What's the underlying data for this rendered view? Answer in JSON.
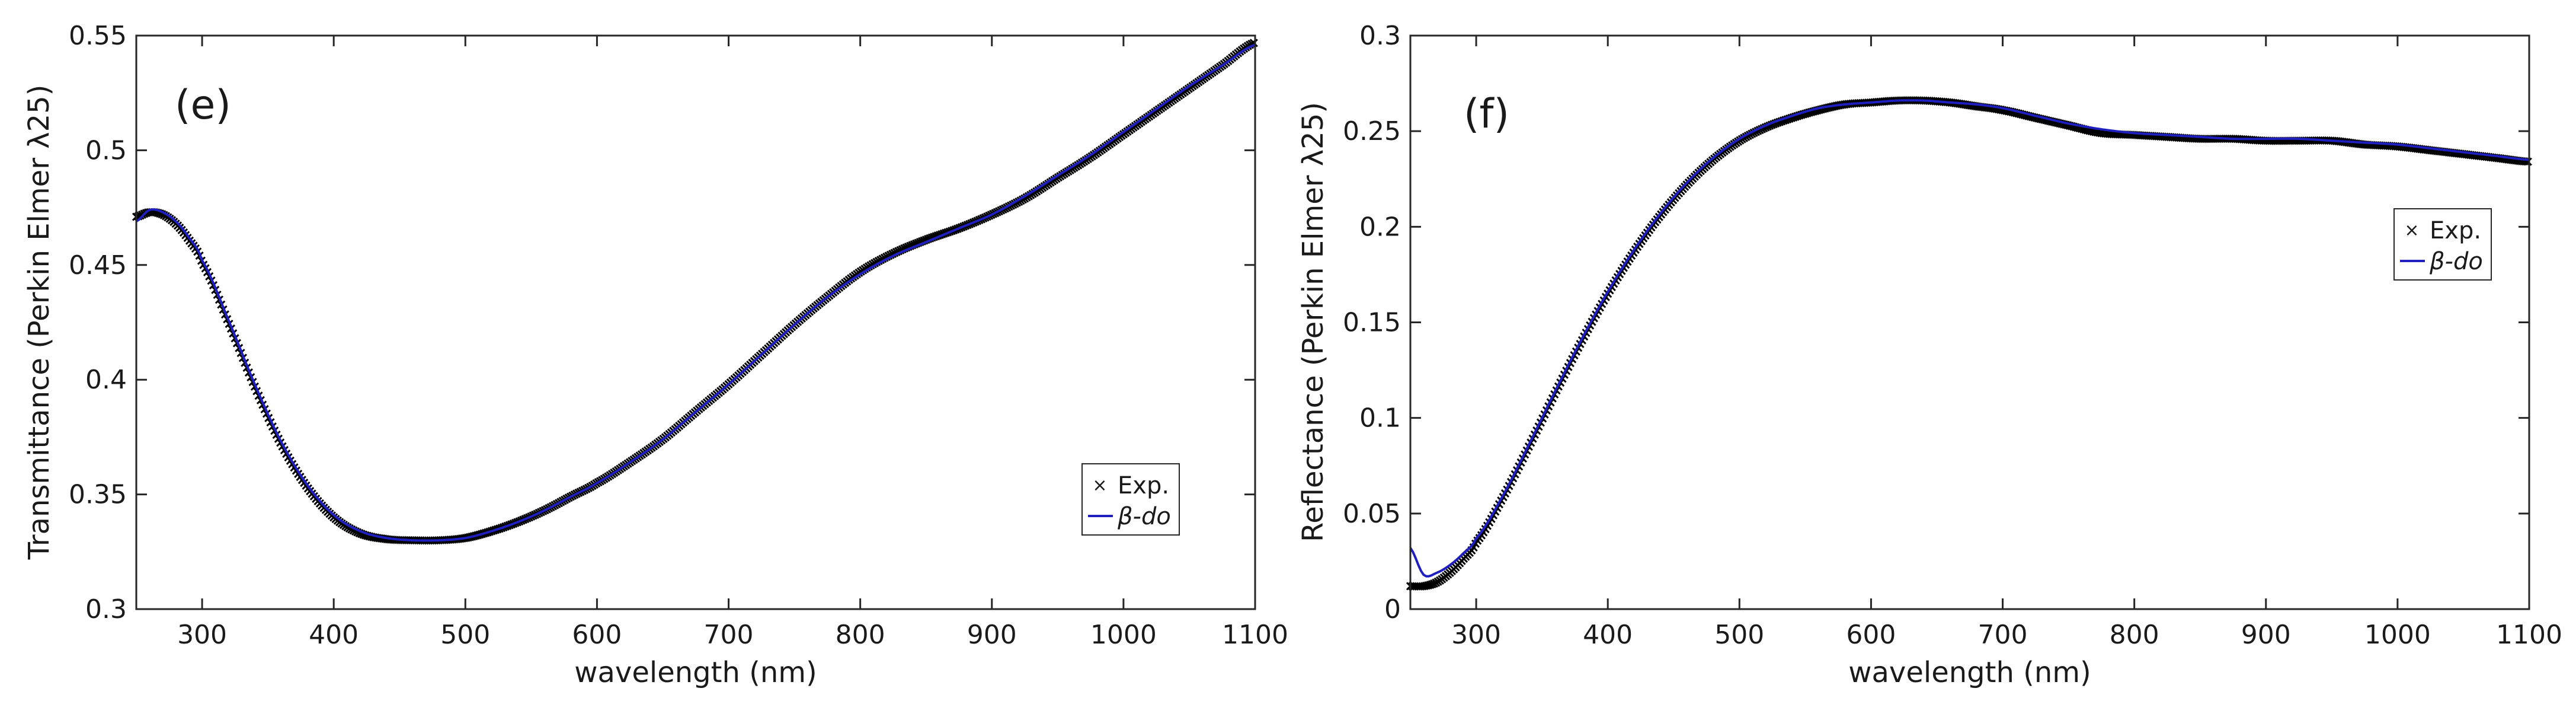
{
  "colors": {
    "experimental": "#000000",
    "model": "#1f1fbf",
    "axis": "#262626",
    "background": "#ffffff"
  },
  "chart_data": [
    {
      "type": "line",
      "panel_label": "(e)",
      "xlabel": "wavelength (nm)",
      "ylabel": "Transmittance (Perkin Elmer λ25)",
      "xlim": [
        250,
        1100
      ],
      "ylim": [
        0.3,
        0.55
      ],
      "x_ticks": [
        300,
        400,
        500,
        600,
        700,
        800,
        900,
        1000,
        1100
      ],
      "x_tick_labels": [
        "300",
        "400",
        "500",
        "600",
        "700",
        "800",
        "900",
        "1000",
        "1100"
      ],
      "y_ticks": [
        0.3,
        0.35,
        0.4,
        0.45,
        0.5,
        0.55
      ],
      "y_tick_labels": [
        "0.3",
        "0.35",
        "0.4",
        "0.45",
        "0.5",
        "0.55"
      ],
      "legend": {
        "position": "bottom-right",
        "entries": [
          "Exp.",
          "β-do"
        ]
      },
      "x": [
        250,
        260,
        270,
        280,
        290,
        300,
        320,
        340,
        360,
        380,
        400,
        420,
        440,
        460,
        480,
        500,
        520,
        540,
        560,
        580,
        600,
        625,
        650,
        675,
        700,
        725,
        750,
        775,
        800,
        825,
        850,
        875,
        900,
        925,
        950,
        975,
        1000,
        1025,
        1050,
        1075,
        1100
      ],
      "series": [
        {
          "name": "Exp.",
          "style": "markers",
          "values": [
            0.471,
            0.473,
            0.472,
            0.468,
            0.461,
            0.451,
            0.425,
            0.397,
            0.372,
            0.353,
            0.34,
            0.333,
            0.3305,
            0.33,
            0.33,
            0.331,
            0.334,
            0.338,
            0.343,
            0.349,
            0.355,
            0.364,
            0.374,
            0.386,
            0.398,
            0.411,
            0.424,
            0.436,
            0.447,
            0.455,
            0.461,
            0.466,
            0.472,
            0.479,
            0.488,
            0.497,
            0.507,
            0.517,
            0.527,
            0.537,
            0.547
          ]
        },
        {
          "name": "β-do",
          "style": "line",
          "values": [
            0.469,
            0.474,
            0.473,
            0.469,
            0.462,
            0.452,
            0.426,
            0.398,
            0.373,
            0.354,
            0.341,
            0.334,
            0.331,
            0.33,
            0.33,
            0.331,
            0.334,
            0.338,
            0.343,
            0.349,
            0.355,
            0.364,
            0.374,
            0.386,
            0.398,
            0.411,
            0.424,
            0.436,
            0.446,
            0.454,
            0.46,
            0.466,
            0.472,
            0.48,
            0.489,
            0.498,
            0.508,
            0.518,
            0.528,
            0.537,
            0.546
          ]
        }
      ]
    },
    {
      "type": "line",
      "panel_label": "(f)",
      "xlabel": "wavelength (nm)",
      "ylabel": "Reflectance (Perkin Elmer λ25)",
      "xlim": [
        250,
        1100
      ],
      "ylim": [
        0,
        0.3
      ],
      "x_ticks": [
        300,
        400,
        500,
        600,
        700,
        800,
        900,
        1000,
        1100
      ],
      "x_tick_labels": [
        "300",
        "400",
        "500",
        "600",
        "700",
        "800",
        "900",
        "1000",
        "1100"
      ],
      "y_ticks": [
        0,
        0.05,
        0.1,
        0.15,
        0.2,
        0.25,
        0.3
      ],
      "y_tick_labels": [
        "0",
        "0.05",
        "0.1",
        "0.15",
        "0.2",
        "0.25",
        "0.3"
      ],
      "legend": {
        "position": "top-right",
        "entries": [
          "Exp.",
          "β-do"
        ]
      },
      "x": [
        250,
        260,
        270,
        280,
        290,
        300,
        320,
        340,
        360,
        380,
        400,
        420,
        440,
        460,
        480,
        500,
        520,
        540,
        560,
        580,
        600,
        620,
        640,
        660,
        680,
        700,
        725,
        750,
        775,
        800,
        825,
        850,
        875,
        900,
        925,
        950,
        975,
        1000,
        1025,
        1050,
        1075,
        1100
      ],
      "series": [
        {
          "name": "Exp.",
          "style": "markers",
          "values": [
            0.012,
            0.012,
            0.014,
            0.019,
            0.026,
            0.035,
            0.058,
            0.085,
            0.113,
            0.14,
            0.165,
            0.187,
            0.206,
            0.222,
            0.235,
            0.245,
            0.252,
            0.257,
            0.261,
            0.264,
            0.265,
            0.266,
            0.266,
            0.265,
            0.263,
            0.261,
            0.257,
            0.253,
            0.249,
            0.248,
            0.247,
            0.246,
            0.246,
            0.245,
            0.245,
            0.245,
            0.243,
            0.242,
            0.24,
            0.238,
            0.236,
            0.234
          ]
        },
        {
          "name": "β-do",
          "style": "line",
          "values": [
            0.032,
            0.018,
            0.019,
            0.023,
            0.029,
            0.037,
            0.059,
            0.086,
            0.114,
            0.141,
            0.166,
            0.188,
            0.207,
            0.223,
            0.236,
            0.246,
            0.253,
            0.258,
            0.262,
            0.264,
            0.265,
            0.266,
            0.266,
            0.265,
            0.264,
            0.262,
            0.258,
            0.254,
            0.251,
            0.249,
            0.248,
            0.247,
            0.246,
            0.246,
            0.246,
            0.245,
            0.244,
            0.243,
            0.241,
            0.239,
            0.237,
            0.235
          ]
        }
      ]
    }
  ]
}
